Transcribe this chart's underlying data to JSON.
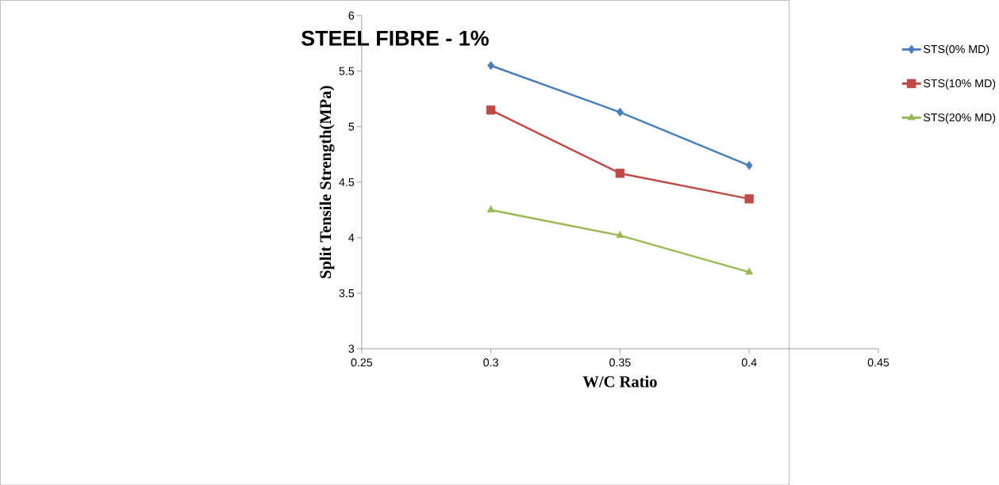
{
  "chart_data": {
    "type": "line",
    "title": "STEEL FIBRE - 1%",
    "xlabel": "W/C Ratio",
    "ylabel": "Split Tensile Strength(MPa)",
    "x": [
      0.3,
      0.35,
      0.4
    ],
    "series": [
      {
        "name": "STS(0% MD)",
        "color": "#4a7ebb",
        "marker": "diamond",
        "values": [
          5.55,
          5.13,
          4.65
        ]
      },
      {
        "name": "STS(10% MD)",
        "color": "#be4b48",
        "marker": "square",
        "values": [
          5.15,
          4.58,
          4.35
        ]
      },
      {
        "name": "STS(20% MD)",
        "color": "#98b954",
        "marker": "triangle",
        "values": [
          4.25,
          4.02,
          3.69
        ]
      }
    ],
    "xlim": [
      0.25,
      0.45
    ],
    "xticks": [
      0.25,
      0.3,
      0.35,
      0.4,
      0.45
    ],
    "ylim": [
      3,
      6
    ],
    "yticks": [
      3,
      3.5,
      4,
      4.5,
      5,
      5.5,
      6
    ],
    "legend": "right",
    "grid": false,
    "line_style": "solid"
  }
}
